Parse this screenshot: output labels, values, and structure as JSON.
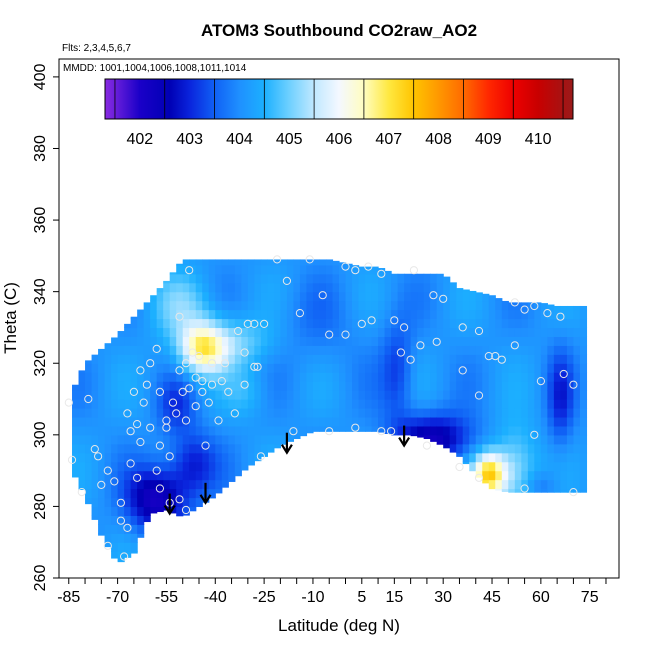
{
  "chart_data": {
    "type": "heatmap",
    "title": "ATOM3 Southbound CO2raw_AO2",
    "annotations": {
      "flights": "Flts: 2,3,4,5,6,7",
      "dates": "MMDD: 1001,1004,1006,1008,1011,1014"
    },
    "xlabel": "Latitude (deg N)",
    "ylabel": "Theta (C)",
    "xlim": [
      -88,
      84
    ],
    "ylim": [
      260,
      405
    ],
    "x_ticks": [
      "-85",
      "-70",
      "-55",
      "-40",
      "-25",
      "-10",
      "5",
      "15",
      "30",
      "45",
      "60",
      "75"
    ],
    "x_tick_values": [
      -85,
      -70,
      -55,
      -40,
      -25,
      -10,
      5,
      15,
      30,
      45,
      60,
      75
    ],
    "x_minor_step": 5,
    "y_ticks": [
      "260",
      "280",
      "300",
      "320",
      "340",
      "360",
      "380",
      "400"
    ],
    "y_tick_values": [
      260,
      280,
      300,
      320,
      340,
      360,
      380,
      400
    ],
    "colorbar": {
      "labels": [
        "402",
        "403",
        "404",
        "405",
        "406",
        "407",
        "408",
        "409",
        "410"
      ],
      "label_values": [
        402,
        403,
        404,
        405,
        406,
        407,
        408,
        409,
        410
      ],
      "range": [
        401.3,
        410.7
      ],
      "stops": [
        {
          "value": 401.3,
          "color": "#8A2BE2"
        },
        {
          "value": 402.0,
          "color": "#1a00c8"
        },
        {
          "value": 402.6,
          "color": "#0000b4"
        },
        {
          "value": 403.0,
          "color": "#0a24dc"
        },
        {
          "value": 403.5,
          "color": "#1060f5"
        },
        {
          "value": 404.0,
          "color": "#1f90ff"
        },
        {
          "value": 404.5,
          "color": "#1cb0ff"
        },
        {
          "value": 405.0,
          "color": "#6ed0ff"
        },
        {
          "value": 405.5,
          "color": "#c0e8ff"
        },
        {
          "value": 406.0,
          "color": "#f4f8ff"
        },
        {
          "value": 406.5,
          "color": "#fffdc0"
        },
        {
          "value": 407.0,
          "color": "#ffe840"
        },
        {
          "value": 407.5,
          "color": "#ffc400"
        },
        {
          "value": 408.0,
          "color": "#ff9800"
        },
        {
          "value": 408.5,
          "color": "#ff6a00"
        },
        {
          "value": 409.0,
          "color": "#ff2800"
        },
        {
          "value": 409.5,
          "color": "#ee0000"
        },
        {
          "value": 410.0,
          "color": "#c80000"
        },
        {
          "value": 410.7,
          "color": "#9a1a1a"
        }
      ]
    },
    "arrows": [
      {
        "lat": -54,
        "theta": 278
      },
      {
        "lat": -43,
        "theta": 281
      },
      {
        "lat": -18,
        "theta": 295
      },
      {
        "lat": 18,
        "theta": 297
      }
    ],
    "field": {
      "lat_grid": [
        -84,
        -80,
        -75,
        -70,
        -65,
        -60,
        -55,
        -50,
        -45,
        -40,
        -35,
        -30,
        -25,
        -20,
        -15,
        -10,
        -5,
        0,
        5,
        10,
        15,
        20,
        25,
        30,
        35,
        40,
        45,
        50,
        55,
        60,
        65,
        70,
        73
      ],
      "upper_theta": [
        312,
        320,
        324,
        328,
        333,
        338,
        343,
        349,
        349,
        349,
        349,
        349,
        349,
        349,
        349,
        349,
        349,
        348,
        347,
        347,
        345,
        345,
        345,
        345,
        341,
        340,
        339,
        337,
        337,
        337,
        336,
        336,
        336
      ],
      "lower_theta": [
        290,
        283,
        272,
        264,
        267,
        278,
        279,
        277,
        280,
        283,
        287,
        291,
        294,
        297,
        299,
        301,
        301,
        301,
        301,
        301,
        300,
        300,
        299,
        297,
        294,
        289,
        285,
        284,
        284,
        284,
        284,
        284,
        284
      ],
      "base_value": 404.1,
      "features": [
        {
          "lat": -44,
          "theta": 324,
          "dlat": 7,
          "dtheta": 7,
          "amp": 2.3
        },
        {
          "lat": -35,
          "theta": 326,
          "dlat": 13,
          "dtheta": 7,
          "amp": 1.0
        },
        {
          "lat": -30,
          "theta": 312,
          "dlat": 7,
          "dtheta": 7,
          "amp": 0.5
        },
        {
          "lat": -50,
          "theta": 336,
          "dlat": 10,
          "dtheta": 9,
          "amp": 0.8
        },
        {
          "lat": 44,
          "theta": 289,
          "dlat": 5,
          "dtheta": 6,
          "amp": 3.0
        },
        {
          "lat": 52,
          "theta": 290,
          "dlat": 7,
          "dtheta": 12,
          "amp": 1.3
        },
        {
          "lat": -58,
          "theta": 282,
          "dlat": 9,
          "dtheta": 9,
          "amp": -2.0
        },
        {
          "lat": -47,
          "theta": 292,
          "dlat": 7,
          "dtheta": 9,
          "amp": -1.2
        },
        {
          "lat": -52,
          "theta": 308,
          "dlat": 6,
          "dtheta": 8,
          "amp": -0.8
        },
        {
          "lat": 27,
          "theta": 299,
          "dlat": 12,
          "dtheta": 7,
          "amp": -1.8
        },
        {
          "lat": 16,
          "theta": 318,
          "dlat": 5,
          "dtheta": 14,
          "amp": -0.9
        },
        {
          "lat": 66,
          "theta": 310,
          "dlat": 4,
          "dtheta": 14,
          "amp": -1.0
        },
        {
          "lat": 60,
          "theta": 286,
          "dlat": 5,
          "dtheta": 4,
          "amp": -0.5
        },
        {
          "lat": -10,
          "theta": 330,
          "dlat": 15,
          "dtheta": 12,
          "amp": -0.3
        }
      ]
    },
    "points": [
      {
        "lat": -85,
        "theta": 309
      },
      {
        "lat": -84,
        "theta": 293
      },
      {
        "lat": -81,
        "theta": 284
      },
      {
        "lat": -77,
        "theta": 296
      },
      {
        "lat": -76,
        "theta": 294
      },
      {
        "lat": -75,
        "theta": 286
      },
      {
        "lat": -73,
        "theta": 290
      },
      {
        "lat": -71,
        "theta": 287
      },
      {
        "lat": -69,
        "theta": 281
      },
      {
        "lat": -69,
        "theta": 276
      },
      {
        "lat": -67,
        "theta": 274
      },
      {
        "lat": -68,
        "theta": 266
      },
      {
        "lat": -66,
        "theta": 292
      },
      {
        "lat": -64,
        "theta": 288
      },
      {
        "lat": -63,
        "theta": 298
      },
      {
        "lat": -66,
        "theta": 301
      },
      {
        "lat": -64,
        "theta": 303
      },
      {
        "lat": -67,
        "theta": 306
      },
      {
        "lat": -62,
        "theta": 309
      },
      {
        "lat": -65,
        "theta": 312
      },
      {
        "lat": -61,
        "theta": 314
      },
      {
        "lat": -63,
        "theta": 318
      },
      {
        "lat": -60,
        "theta": 320
      },
      {
        "lat": -58,
        "theta": 324
      },
      {
        "lat": -57,
        "theta": 312
      },
      {
        "lat": -55,
        "theta": 302
      },
      {
        "lat": -57,
        "theta": 297
      },
      {
        "lat": -54,
        "theta": 294
      },
      {
        "lat": -57,
        "theta": 285
      },
      {
        "lat": -54,
        "theta": 281
      },
      {
        "lat": -51,
        "theta": 282
      },
      {
        "lat": -49,
        "theta": 279
      },
      {
        "lat": -55,
        "theta": 304
      },
      {
        "lat": -52,
        "theta": 306
      },
      {
        "lat": -49,
        "theta": 304
      },
      {
        "lat": -53,
        "theta": 309
      },
      {
        "lat": -50,
        "theta": 312
      },
      {
        "lat": -48,
        "theta": 313
      },
      {
        "lat": -46,
        "theta": 308
      },
      {
        "lat": -44,
        "theta": 312
      },
      {
        "lat": -42,
        "theta": 309
      },
      {
        "lat": -51,
        "theta": 318
      },
      {
        "lat": -49,
        "theta": 320
      },
      {
        "lat": -47,
        "theta": 323
      },
      {
        "lat": -45,
        "theta": 322
      },
      {
        "lat": -44,
        "theta": 315
      },
      {
        "lat": -41,
        "theta": 320
      },
      {
        "lat": -41,
        "theta": 314
      },
      {
        "lat": -38,
        "theta": 315
      },
      {
        "lat": -37,
        "theta": 320
      },
      {
        "lat": -36,
        "theta": 312
      },
      {
        "lat": -51,
        "theta": 333
      },
      {
        "lat": -48,
        "theta": 346
      },
      {
        "lat": -33,
        "theta": 329
      },
      {
        "lat": -30,
        "theta": 331
      },
      {
        "lat": -28,
        "theta": 331
      },
      {
        "lat": -31,
        "theta": 323
      },
      {
        "lat": -28,
        "theta": 319
      },
      {
        "lat": -27,
        "theta": 319
      },
      {
        "lat": -31,
        "theta": 314
      },
      {
        "lat": -26,
        "theta": 294
      },
      {
        "lat": -21,
        "theta": 349
      },
      {
        "lat": -18,
        "theta": 343
      },
      {
        "lat": -14,
        "theta": 334
      },
      {
        "lat": -11,
        "theta": 349
      },
      {
        "lat": -7,
        "theta": 339
      },
      {
        "lat": -5,
        "theta": 328
      },
      {
        "lat": 0,
        "theta": 347
      },
      {
        "lat": 3,
        "theta": 346
      },
      {
        "lat": 7,
        "theta": 347
      },
      {
        "lat": 11,
        "theta": 345
      },
      {
        "lat": 15,
        "theta": 332
      },
      {
        "lat": 5,
        "theta": 331
      },
      {
        "lat": 8,
        "theta": 332
      },
      {
        "lat": 0,
        "theta": 328
      },
      {
        "lat": 18,
        "theta": 330
      },
      {
        "lat": 21,
        "theta": 346
      },
      {
        "lat": 23,
        "theta": 325
      },
      {
        "lat": 20,
        "theta": 321
      },
      {
        "lat": 17,
        "theta": 323
      },
      {
        "lat": 28,
        "theta": 326
      },
      {
        "lat": 30,
        "theta": 338
      },
      {
        "lat": 36,
        "theta": 330
      },
      {
        "lat": 41,
        "theta": 329
      },
      {
        "lat": 44,
        "theta": 322
      },
      {
        "lat": 46,
        "theta": 322
      },
      {
        "lat": 48,
        "theta": 321
      },
      {
        "lat": 36,
        "theta": 318
      },
      {
        "lat": 52,
        "theta": 337
      },
      {
        "lat": 55,
        "theta": 335
      },
      {
        "lat": 58,
        "theta": 336
      },
      {
        "lat": 62,
        "theta": 334
      },
      {
        "lat": 66,
        "theta": 333
      },
      {
        "lat": 52,
        "theta": 325
      },
      {
        "lat": 60,
        "theta": 315
      },
      {
        "lat": 67,
        "theta": 317
      },
      {
        "lat": 70,
        "theta": 314
      },
      {
        "lat": 58,
        "theta": 300
      },
      {
        "lat": 55,
        "theta": 285
      },
      {
        "lat": 70,
        "theta": 284
      },
      {
        "lat": -16,
        "theta": 301
      },
      {
        "lat": -5,
        "theta": 301
      },
      {
        "lat": 3,
        "theta": 302
      },
      {
        "lat": 11,
        "theta": 301
      },
      {
        "lat": 14,
        "theta": 301
      },
      {
        "lat": 25,
        "theta": 297
      },
      {
        "lat": 35,
        "theta": 291
      },
      {
        "lat": 41,
        "theta": 288
      },
      {
        "lat": -73,
        "theta": 269
      },
      {
        "lat": -79,
        "theta": 310
      },
      {
        "lat": -58,
        "theta": 290
      },
      {
        "lat": -60,
        "theta": 302
      },
      {
        "lat": -34,
        "theta": 306
      },
      {
        "lat": -39,
        "theta": 304
      },
      {
        "lat": -46,
        "theta": 316
      },
      {
        "lat": -43,
        "theta": 297
      },
      {
        "lat": -25,
        "theta": 331
      },
      {
        "lat": 27,
        "theta": 339
      },
      {
        "lat": 41,
        "theta": 311
      }
    ]
  }
}
